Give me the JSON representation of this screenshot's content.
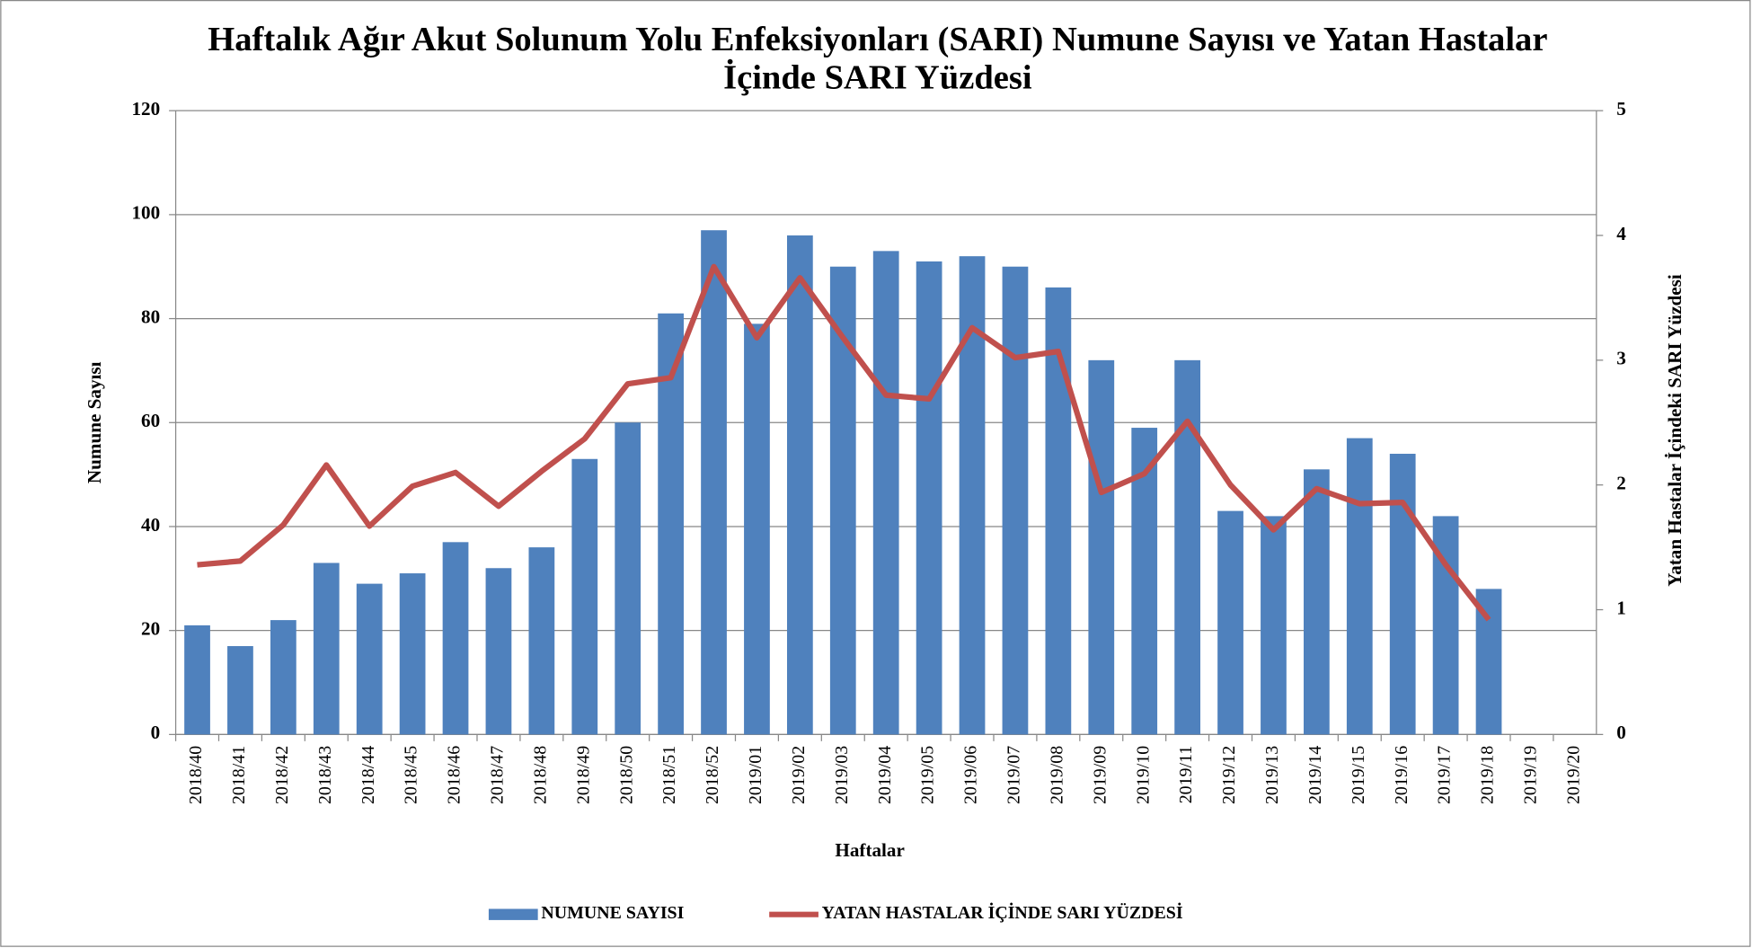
{
  "chart_data": {
    "type": "bar-line",
    "title": "Haftalık Ağır Akut Solunum Yolu Enfeksiyonları (SARI) Numune Sayısı ve Yatan Hastalar İçinde SARI Yüzdesi",
    "x_label": "Haftalar",
    "y_label": "Numune  Sayısı",
    "y2_label": "Yatan Hastalar İçindeki SARI  Yüzdesi",
    "categories": [
      "2018/40",
      "2018/41",
      "2018/42",
      "2018/43",
      "2018/44",
      "2018/45",
      "2018/46",
      "2018/47",
      "2018/48",
      "2018/49",
      "2018/50",
      "2018/51",
      "2018/52",
      "2019/01",
      "2019/02",
      "2019/03",
      "2019/04",
      "2019/05",
      "2019/06",
      "2019/07",
      "2019/08",
      "2019/09",
      "2019/10",
      "2019/11",
      "2019/12",
      "2019/13",
      "2019/14",
      "2019/15",
      "2019/16",
      "2019/17",
      "2019/18",
      "2019/19",
      "2019/20"
    ],
    "series": [
      {
        "name": "NUMUNE SAYISI",
        "type": "bar",
        "color": "#4f81bd",
        "values": [
          21,
          17,
          22,
          33,
          29,
          31,
          37,
          32,
          36,
          53,
          60,
          81,
          97,
          79,
          96,
          90,
          93,
          91,
          92,
          90,
          86,
          72,
          59,
          72,
          43,
          42,
          51,
          57,
          54,
          42,
          28,
          null,
          null
        ]
      },
      {
        "name": "YATAN HASTALAR İÇİNDE SARI  YÜZDESİ",
        "type": "line",
        "axis": "y2",
        "color": "#c0504d",
        "values": [
          1.36,
          1.39,
          1.68,
          2.16,
          1.67,
          1.99,
          2.1,
          1.83,
          2.11,
          2.37,
          2.81,
          2.86,
          3.75,
          3.18,
          3.66,
          3.18,
          2.72,
          2.69,
          3.26,
          3.02,
          3.07,
          1.94,
          2.09,
          2.51,
          2.0,
          1.64,
          1.97,
          1.85,
          1.86,
          1.36,
          0.92,
          null,
          null
        ]
      }
    ],
    "ylim": [
      0,
      120
    ],
    "yticks": [
      0,
      20,
      40,
      60,
      80,
      100,
      120
    ],
    "y2lim": [
      0,
      5
    ],
    "y2ticks": [
      0,
      1,
      2,
      3,
      4,
      5
    ],
    "grid": true,
    "legend": "bottom"
  }
}
